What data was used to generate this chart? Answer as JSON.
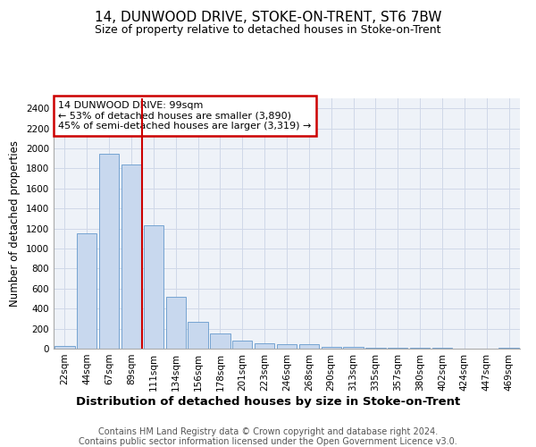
{
  "title": "14, DUNWOOD DRIVE, STOKE-ON-TRENT, ST6 7BW",
  "subtitle": "Size of property relative to detached houses in Stoke-on-Trent",
  "xlabel": "Distribution of detached houses by size in Stoke-on-Trent",
  "ylabel": "Number of detached properties",
  "footer_line1": "Contains HM Land Registry data © Crown copyright and database right 2024.",
  "footer_line2": "Contains public sector information licensed under the Open Government Licence v3.0.",
  "bar_labels": [
    "22sqm",
    "44sqm",
    "67sqm",
    "89sqm",
    "111sqm",
    "134sqm",
    "156sqm",
    "178sqm",
    "201sqm",
    "223sqm",
    "246sqm",
    "268sqm",
    "290sqm",
    "313sqm",
    "335sqm",
    "357sqm",
    "380sqm",
    "402sqm",
    "424sqm",
    "447sqm",
    "469sqm"
  ],
  "bar_values": [
    30,
    1155,
    1950,
    1840,
    1230,
    520,
    265,
    148,
    82,
    50,
    45,
    42,
    20,
    15,
    10,
    8,
    5,
    12,
    3,
    3,
    12
  ],
  "bar_color": "#c8d8ee",
  "bar_edge_color": "#6699cc",
  "ylim": [
    0,
    2500
  ],
  "yticks": [
    0,
    200,
    400,
    600,
    800,
    1000,
    1200,
    1400,
    1600,
    1800,
    2000,
    2200,
    2400
  ],
  "property_line_x": 3.5,
  "annotation_title": "14 DUNWOOD DRIVE: 99sqm",
  "annotation_line1": "← 53% of detached houses are smaller (3,890)",
  "annotation_line2": "45% of semi-detached houses are larger (3,319) →",
  "annotation_box_color": "#ffffff",
  "annotation_box_edge": "#cc0000",
  "vline_color": "#cc0000",
  "grid_color": "#d0d8e8",
  "background_color": "#eef2f8",
  "title_fontsize": 11,
  "subtitle_fontsize": 9,
  "xlabel_fontsize": 9.5,
  "ylabel_fontsize": 8.5,
  "tick_fontsize": 7.5,
  "annotation_fontsize": 8,
  "footer_fontsize": 7
}
